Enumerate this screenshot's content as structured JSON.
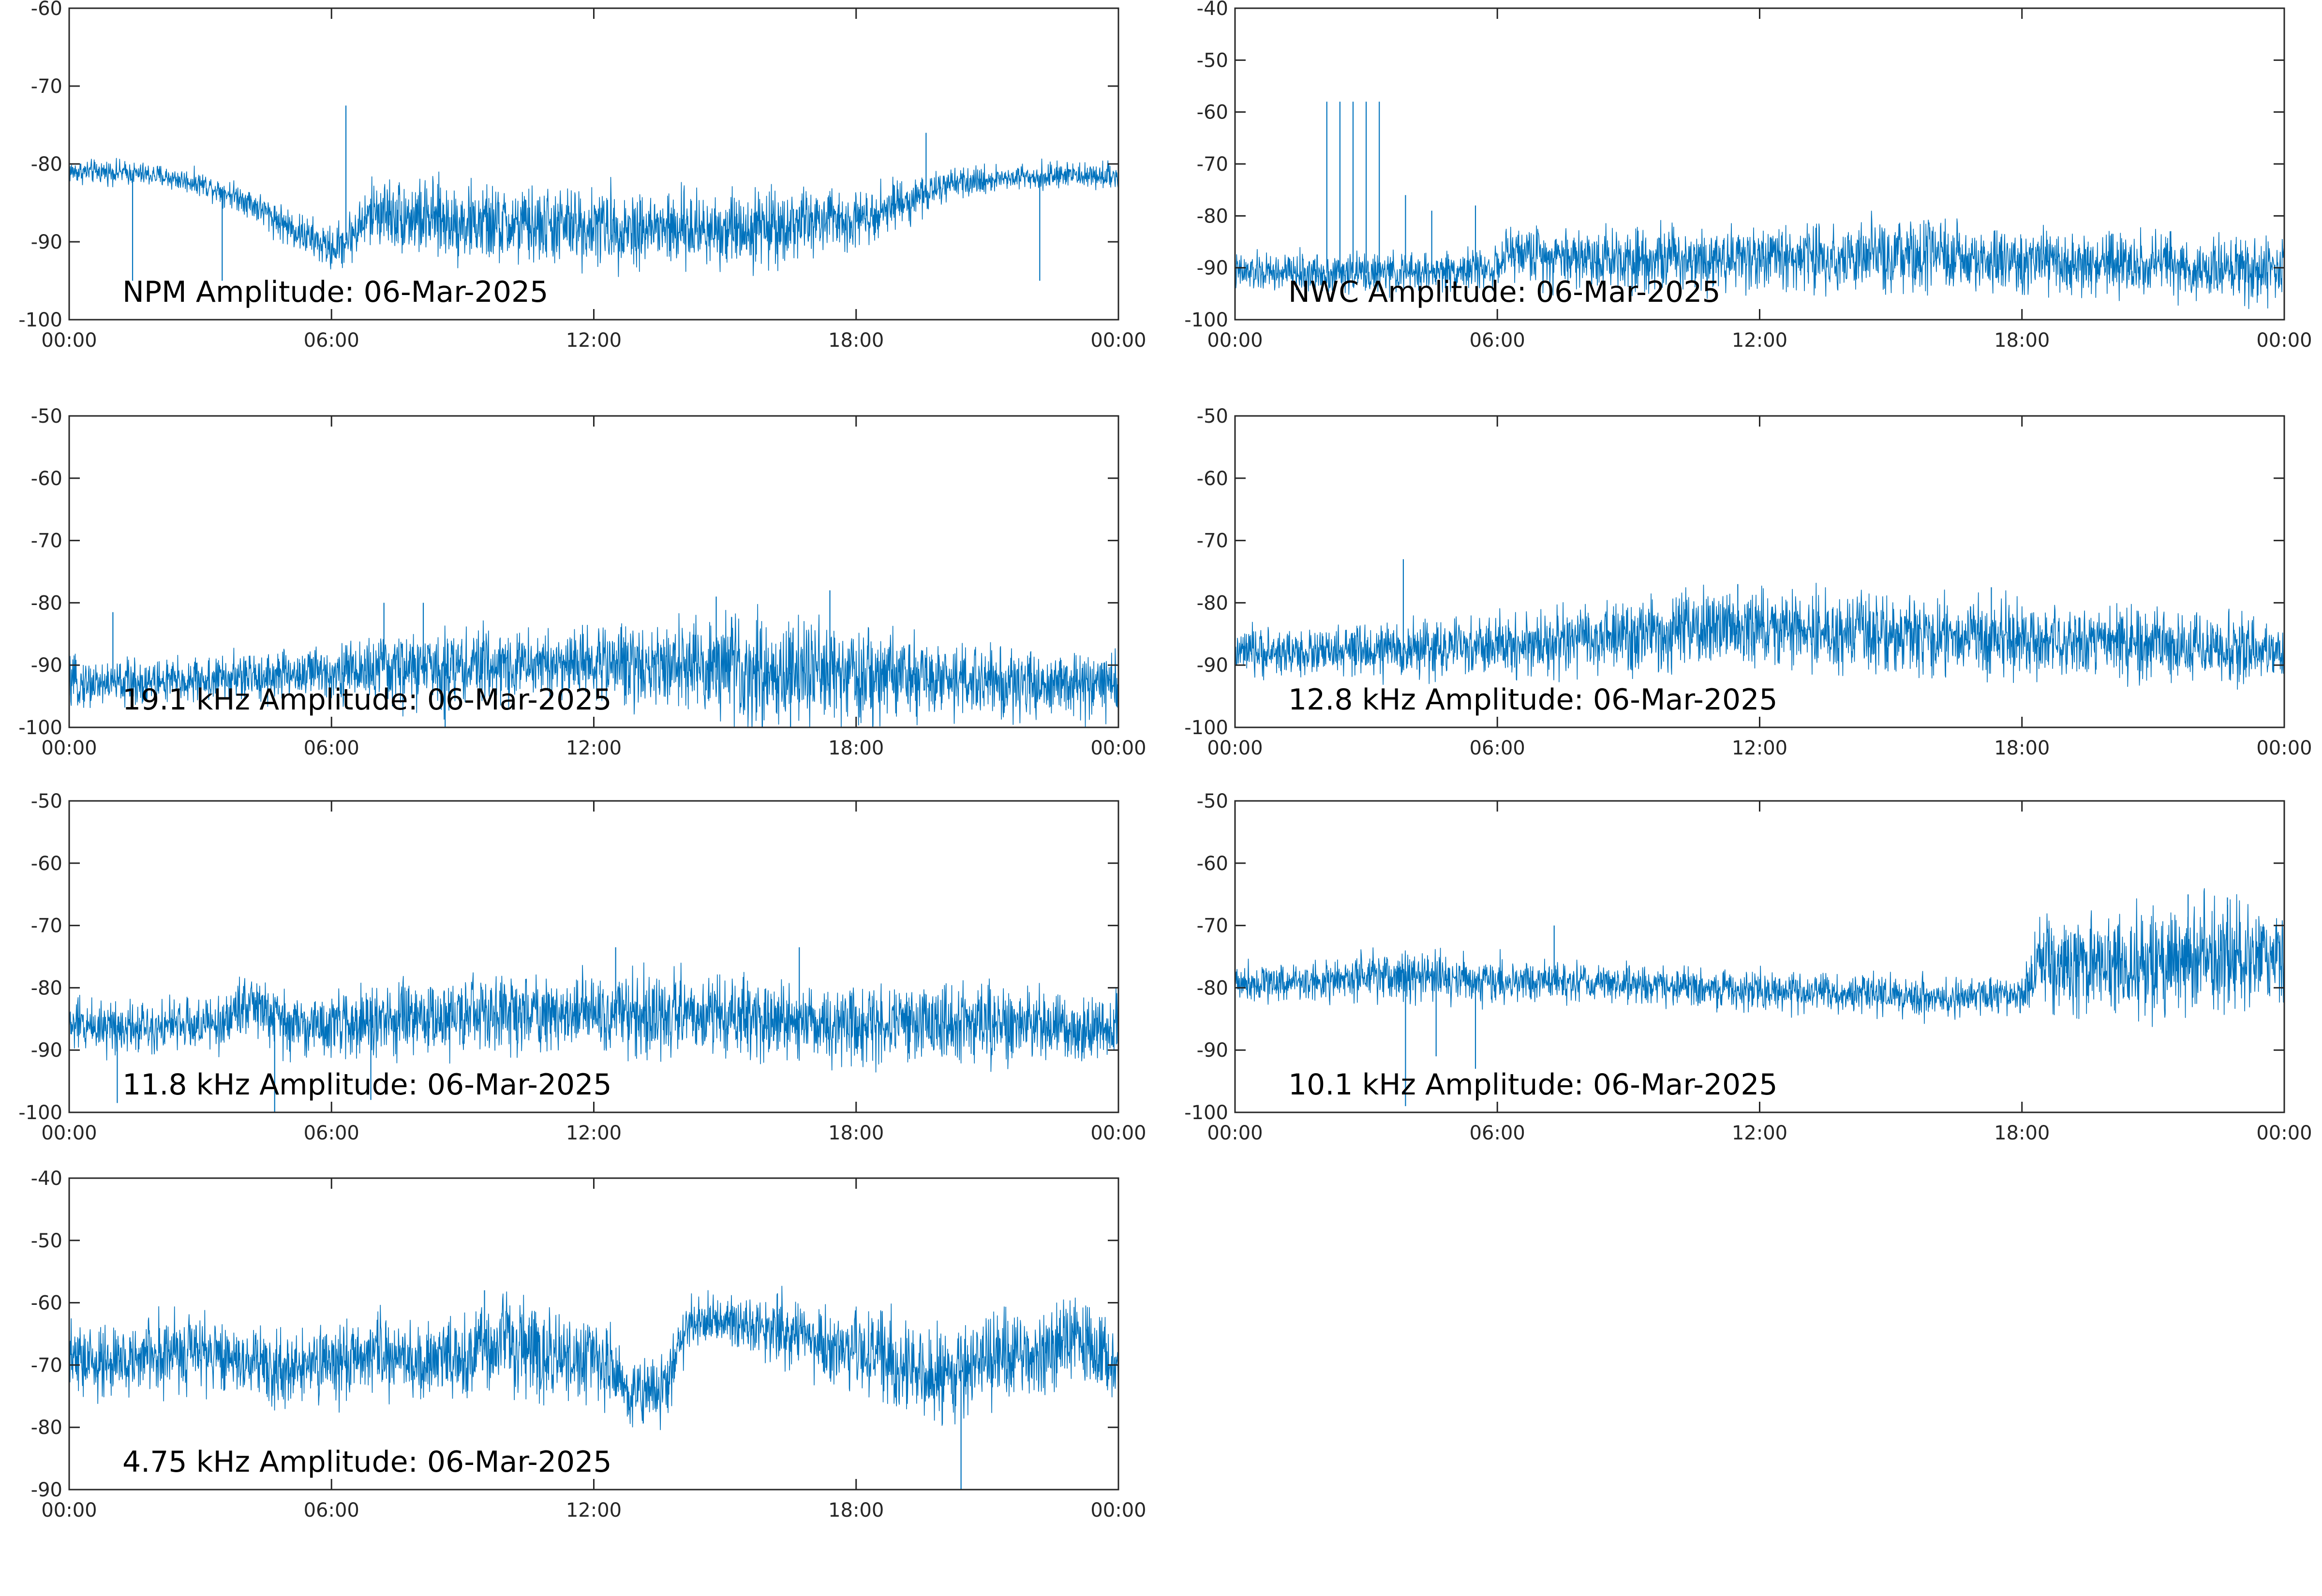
{
  "style": {
    "trace_color": "#0072bd",
    "axis_color": "#262626",
    "background": "#ffffff"
  },
  "chart_data": [
    {
      "type": "line",
      "title": "NPM Amplitude: 06-Mar-2025",
      "x_ticks": [
        "00:00",
        "06:00",
        "12:00",
        "18:00",
        "00:00"
      ],
      "xlim_hours": [
        0,
        24
      ],
      "ylim": [
        -100,
        -60
      ],
      "y_ticks": [
        -60,
        -70,
        -80,
        -90,
        -100
      ],
      "series": [
        {
          "x_hours": [
            0,
            1,
            2,
            3,
            4,
            5,
            6,
            6.3,
            7,
            8,
            10,
            12,
            14,
            16,
            18,
            19,
            20,
            21,
            22,
            23,
            24
          ],
          "values": [
            -81,
            -81,
            -81.5,
            -82.5,
            -84.5,
            -88,
            -91,
            -90,
            -86,
            -87,
            -88,
            -88,
            -88.5,
            -88,
            -87,
            -85,
            -83,
            -82,
            -81.5,
            -81.5,
            -81.5
          ],
          "noise": [
            1.2,
            1.2,
            1.2,
            1.2,
            1.5,
            2,
            2.2,
            2.5,
            3.5,
            4,
            4,
            4,
            4,
            4,
            3,
            2.5,
            1.6,
            1.4,
            1.3,
            1.3,
            1.3
          ]
        }
      ],
      "spikes": [
        {
          "x_hours": 6.33,
          "value": -72.5
        },
        {
          "x_hours": 1.45,
          "value": -95
        },
        {
          "x_hours": 3.5,
          "value": -95
        },
        {
          "x_hours": 19.6,
          "value": -76
        },
        {
          "x_hours": 22.2,
          "value": -95
        }
      ]
    },
    {
      "type": "line",
      "title": "NWC Amplitude: 06-Mar-2025",
      "x_ticks": [
        "00:00",
        "06:00",
        "12:00",
        "18:00",
        "00:00"
      ],
      "xlim_hours": [
        0,
        24
      ],
      "ylim": [
        -100,
        -40
      ],
      "y_ticks": [
        -40,
        -50,
        -60,
        -70,
        -80,
        -90,
        -100
      ],
      "series": [
        {
          "x_hours": [
            0,
            2,
            4,
            6,
            6.3,
            8,
            10,
            12,
            14,
            16,
            18,
            20,
            22,
            24
          ],
          "values": [
            -91,
            -91,
            -91,
            -90,
            -87,
            -88,
            -88,
            -88,
            -88,
            -88,
            -89,
            -89.5,
            -90,
            -91
          ],
          "noise": [
            3,
            3,
            3,
            3,
            4,
            5,
            5,
            5,
            5.5,
            5.5,
            5,
            5,
            5,
            5
          ]
        }
      ],
      "spikes": [
        {
          "x_hours": 2.1,
          "value": -58
        },
        {
          "x_hours": 2.4,
          "value": -58
        },
        {
          "x_hours": 2.7,
          "value": -58
        },
        {
          "x_hours": 3.0,
          "value": -58
        },
        {
          "x_hours": 3.3,
          "value": -58
        },
        {
          "x_hours": 3.9,
          "value": -76
        },
        {
          "x_hours": 4.5,
          "value": -79
        },
        {
          "x_hours": 5.5,
          "value": -78
        }
      ]
    },
    {
      "type": "line",
      "title": "19.1 kHz Amplitude: 06-Mar-2025",
      "x_ticks": [
        "00:00",
        "06:00",
        "12:00",
        "18:00",
        "00:00"
      ],
      "xlim_hours": [
        0,
        24
      ],
      "ylim": [
        -100,
        -50
      ],
      "y_ticks": [
        -50,
        -60,
        -70,
        -80,
        -90,
        -100
      ],
      "series": [
        {
          "x_hours": [
            0,
            3,
            6,
            8,
            10,
            12,
            14,
            16,
            18,
            20,
            22,
            24
          ],
          "values": [
            -93,
            -92.5,
            -91,
            -90.5,
            -90,
            -89.5,
            -90,
            -91,
            -92,
            -92.5,
            -93,
            -93
          ],
          "noise": [
            3,
            3,
            3.5,
            5,
            4.5,
            4.5,
            6,
            7,
            6,
            5,
            4.5,
            4
          ]
        }
      ],
      "spikes": [
        {
          "x_hours": 1,
          "value": -81.5
        },
        {
          "x_hours": 7.2,
          "value": -80
        },
        {
          "x_hours": 8.1,
          "value": -80
        },
        {
          "x_hours": 14.8,
          "value": -79
        },
        {
          "x_hours": 17.4,
          "value": -78
        },
        {
          "x_hours": 8.6,
          "value": -100
        },
        {
          "x_hours": 16.5,
          "value": -100
        }
      ]
    },
    {
      "type": "line",
      "title": "12.8 kHz Amplitude: 06-Mar-2025",
      "x_ticks": [
        "00:00",
        "06:00",
        "12:00",
        "18:00",
        "00:00"
      ],
      "xlim_hours": [
        0,
        24
      ],
      "ylim": [
        -100,
        -50
      ],
      "y_ticks": [
        -50,
        -60,
        -70,
        -80,
        -90,
        -100
      ],
      "series": [
        {
          "x_hours": [
            0,
            2,
            4,
            6,
            8,
            10,
            11,
            12,
            14,
            16,
            18,
            20,
            22,
            24
          ],
          "values": [
            -88,
            -88,
            -87.5,
            -87,
            -86,
            -85,
            -84,
            -84,
            -85,
            -85.5,
            -86,
            -86.5,
            -87,
            -88
          ],
          "noise": [
            3,
            3,
            3.5,
            4,
            4.5,
            5,
            5,
            5,
            5,
            5,
            4.5,
            4.5,
            4.5,
            4
          ]
        }
      ],
      "spikes": [
        {
          "x_hours": 3.85,
          "value": -73
        },
        {
          "x_hours": 11.5,
          "value": -77
        },
        {
          "x_hours": 17.3,
          "value": -77.5
        }
      ]
    },
    {
      "type": "line",
      "title": "11.8 kHz Amplitude: 06-Mar-2025",
      "x_ticks": [
        "00:00",
        "06:00",
        "12:00",
        "18:00",
        "00:00"
      ],
      "xlim_hours": [
        0,
        24
      ],
      "ylim": [
        -100,
        -50
      ],
      "y_ticks": [
        -50,
        -60,
        -70,
        -80,
        -90,
        -100
      ],
      "series": [
        {
          "x_hours": [
            0,
            2,
            3.5,
            4,
            5,
            6,
            8,
            10,
            12,
            14,
            16,
            18,
            20,
            22,
            24
          ],
          "values": [
            -86,
            -86,
            -86,
            -82,
            -86,
            -86,
            -85,
            -84,
            -84,
            -84.5,
            -85,
            -85.5,
            -86,
            -86,
            -87
          ],
          "noise": [
            3.5,
            3.5,
            3.5,
            4,
            4,
            4,
            4.5,
            5,
            5,
            5,
            5,
            5,
            5,
            4.5,
            4.5
          ]
        }
      ],
      "spikes": [
        {
          "x_hours": 1.1,
          "value": -98.5
        },
        {
          "x_hours": 4.7,
          "value": -100
        },
        {
          "x_hours": 12.5,
          "value": -73.5
        },
        {
          "x_hours": 16.7,
          "value": -73.5
        },
        {
          "x_hours": 6.9,
          "value": -98
        }
      ]
    },
    {
      "type": "line",
      "title": "10.1 kHz Amplitude: 06-Mar-2025",
      "x_ticks": [
        "00:00",
        "06:00",
        "12:00",
        "18:00",
        "00:00"
      ],
      "xlim_hours": [
        0,
        24
      ],
      "ylim": [
        -100,
        -50
      ],
      "y_ticks": [
        -50,
        -60,
        -70,
        -80,
        -90,
        -100
      ],
      "series": [
        {
          "x_hours": [
            0,
            2,
            4,
            6,
            8,
            10,
            12,
            14,
            16,
            18,
            18.5,
            20,
            22,
            24
          ],
          "values": [
            -79,
            -79,
            -78,
            -79,
            -79,
            -80,
            -80.5,
            -81,
            -81.5,
            -81,
            -76,
            -76,
            -75,
            -75
          ],
          "noise": [
            2.5,
            2.5,
            3.5,
            3,
            2.5,
            2.5,
            2.5,
            2.5,
            2.5,
            2.5,
            6,
            6.5,
            7,
            6
          ]
        }
      ],
      "spikes": [
        {
          "x_hours": 3.9,
          "value": -99
        },
        {
          "x_hours": 4.6,
          "value": -91
        },
        {
          "x_hours": 5.5,
          "value": -93
        },
        {
          "x_hours": 7.3,
          "value": -70
        },
        {
          "x_hours": 21.8,
          "value": -65
        },
        {
          "x_hours": 22.7,
          "value": -65.5
        }
      ]
    },
    {
      "type": "line",
      "title": "4.75 kHz Amplitude: 06-Mar-2025",
      "x_ticks": [
        "00:00",
        "06:00",
        "12:00",
        "18:00",
        "00:00"
      ],
      "xlim_hours": [
        0,
        24
      ],
      "ylim": [
        -90,
        -40
      ],
      "y_ticks": [
        -40,
        -50,
        -60,
        -70,
        -80,
        -90
      ],
      "series": [
        {
          "x_hours": [
            0,
            1,
            2,
            3,
            4,
            5,
            6,
            7,
            8,
            9,
            10,
            11,
            12,
            12.8,
            13.5,
            14.2,
            15,
            16,
            17,
            18,
            19,
            20,
            21,
            22,
            23,
            24
          ],
          "values": [
            -69,
            -70,
            -68,
            -68,
            -69,
            -71,
            -70,
            -68,
            -70,
            -69,
            -66,
            -69,
            -68,
            -74,
            -75,
            -63,
            -63,
            -64,
            -66,
            -68,
            -70,
            -72,
            -69,
            -69,
            -66,
            -70
          ],
          "noise": [
            4.5,
            5,
            5,
            4.5,
            5,
            5,
            5,
            5,
            5,
            6,
            6,
            6,
            5,
            5,
            5,
            3,
            3,
            4,
            5,
            5,
            6,
            6,
            6,
            6,
            5,
            5
          ]
        }
      ],
      "spikes": [
        {
          "x_hours": 20.4,
          "value": -90
        },
        {
          "x_hours": 9.5,
          "value": -58
        },
        {
          "x_hours": 16.2,
          "value": -58.5
        }
      ]
    }
  ]
}
